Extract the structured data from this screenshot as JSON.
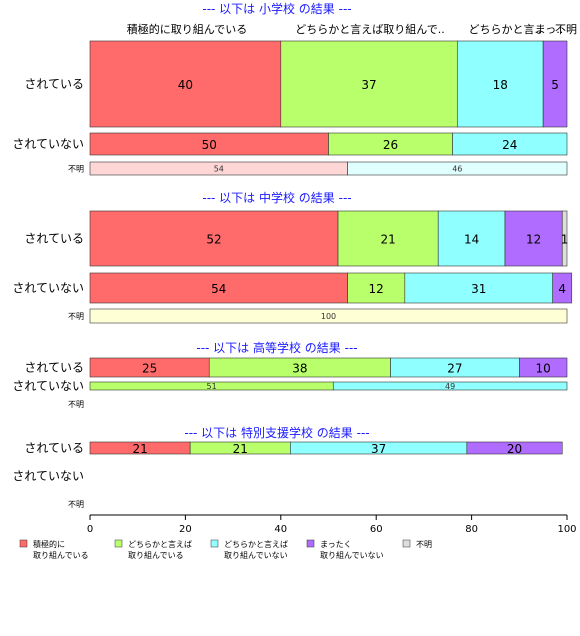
{
  "chart_data": {
    "type": "bar",
    "orientation": "horizontal",
    "stacked": true,
    "xlim": [
      0,
      100
    ],
    "xticks": [
      "0",
      "20",
      "40",
      "60",
      "80",
      "100"
    ],
    "legend_position": "bottom",
    "legend": [
      {
        "label_lines": [
          "積極的に",
          "取り組んでいる"
        ],
        "color": "#ff6b6b"
      },
      {
        "label_lines": [
          "どちらかと言えば",
          "取り組んでいる"
        ],
        "color": "#b8ff6b"
      },
      {
        "label_lines": [
          "どちらかと言えば",
          "取り組んでいない"
        ],
        "color": "#8fffff"
      },
      {
        "label_lines": [
          "まったく",
          "取り組んでいない"
        ],
        "color": "#b06bff"
      },
      {
        "label_lines": [
          "不明"
        ],
        "color": "#dddddd"
      }
    ],
    "top_labels": [
      "積極的に取り組んでいる",
      "どちらかと言えば取り組んで..",
      "どちらかと言..",
      "まっ..",
      "不明"
    ],
    "groups": [
      {
        "title": "--- 以下は 小学校 の結果 ---",
        "rows": [
          {
            "label": "されている",
            "values": [
              40,
              37,
              18,
              5,
              0
            ]
          },
          {
            "label": "されていない",
            "values": [
              50,
              26,
              24,
              0,
              0
            ]
          },
          {
            "label": "不明",
            "values": [
              54,
              0,
              46,
              0,
              0
            ]
          }
        ]
      },
      {
        "title": "--- 以下は 中学校 の結果 ---",
        "rows": [
          {
            "label": "されている",
            "values": [
              52,
              21,
              14,
              12,
              1
            ]
          },
          {
            "label": "されていない",
            "values": [
              54,
              12,
              31,
              4,
              0
            ]
          },
          {
            "label": "不明",
            "values": [
              0,
              0,
              0,
              0,
              100
            ]
          }
        ]
      },
      {
        "title": "--- 以下は 高等学校 の結果 ---",
        "rows": [
          {
            "label": "されている",
            "values": [
              25,
              38,
              27,
              10,
              0
            ]
          },
          {
            "label": "されていない",
            "values": [
              0,
              51,
              49,
              0,
              0
            ]
          },
          {
            "label": "不明",
            "values": [
              0,
              0,
              0,
              0,
              0
            ]
          }
        ]
      },
      {
        "title": "--- 以下は 特別支援学校 の結果 ---",
        "rows": [
          {
            "label": "されている",
            "values": [
              21,
              21,
              37,
              20,
              0
            ]
          },
          {
            "label": "されていない",
            "values": [
              0,
              0,
              0,
              0,
              0
            ]
          },
          {
            "label": "不明",
            "values": [
              0,
              0,
              0,
              0,
              0
            ]
          }
        ]
      }
    ]
  }
}
